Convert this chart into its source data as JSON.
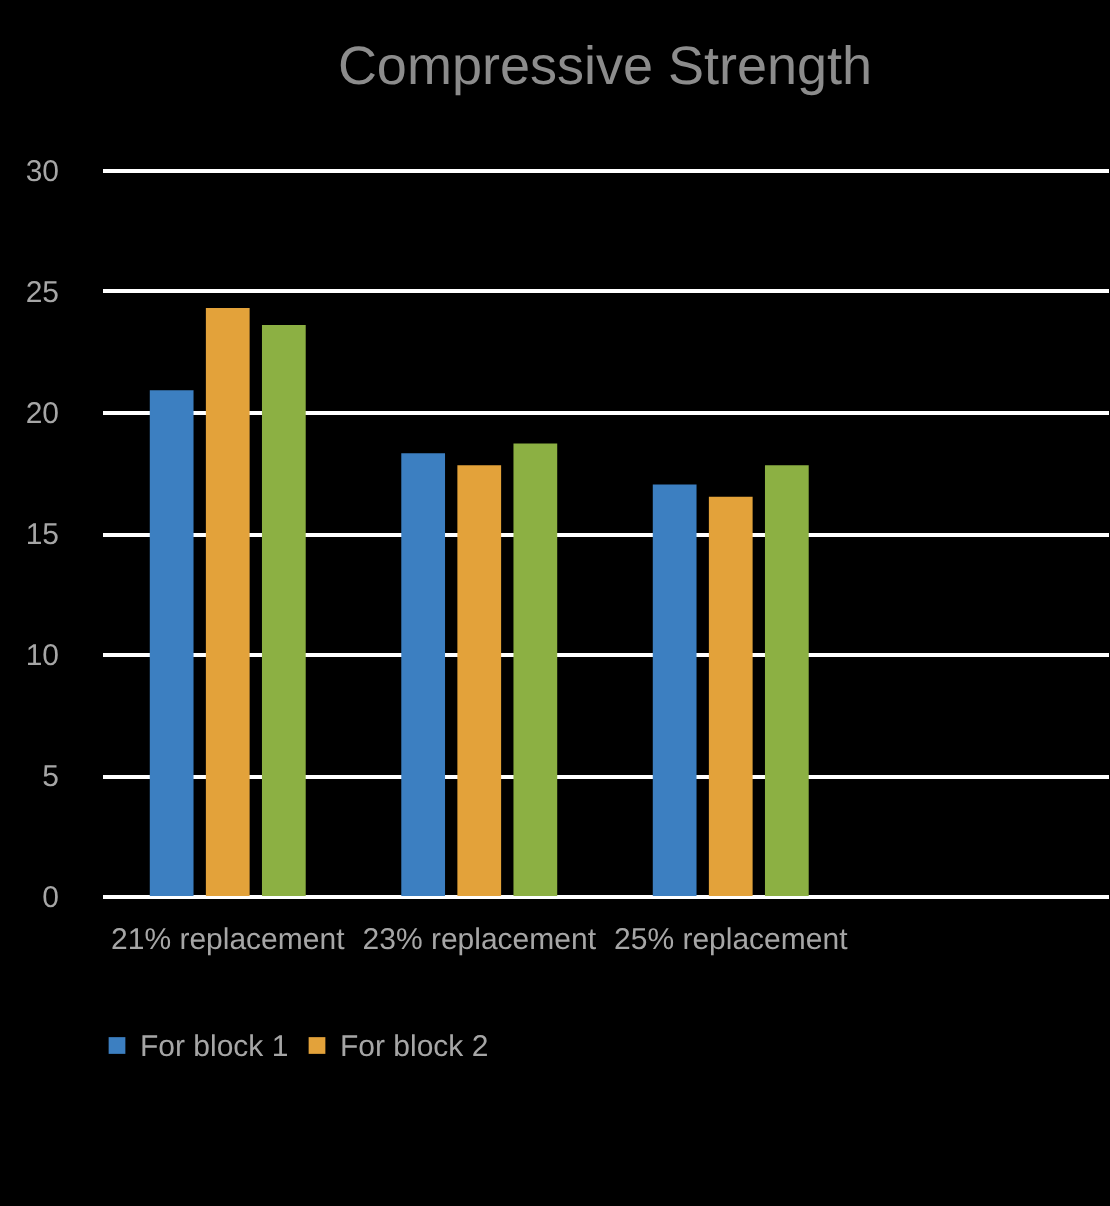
{
  "chart_data": {
    "type": "bar",
    "title": "Compressive Strength",
    "categories": [
      "21% replacement",
      "23% replacement",
      "25% replacement",
      null
    ],
    "series": [
      {
        "name": "For block 1",
        "color": "#3c7fc1",
        "values": [
          20.9,
          18.3,
          17.0,
          null
        ]
      },
      {
        "name": "For block 2",
        "color": "#e3a23a",
        "values": [
          24.3,
          17.8,
          16.5,
          null
        ]
      },
      {
        "color": "#8cb043",
        "values": [
          23.6,
          18.7,
          17.8,
          null
        ]
      }
    ],
    "ylim": [
      0,
      30
    ],
    "yticks": [
      0,
      5,
      10,
      15,
      20,
      25,
      30
    ],
    "grid": "y",
    "legend": "bottom"
  }
}
